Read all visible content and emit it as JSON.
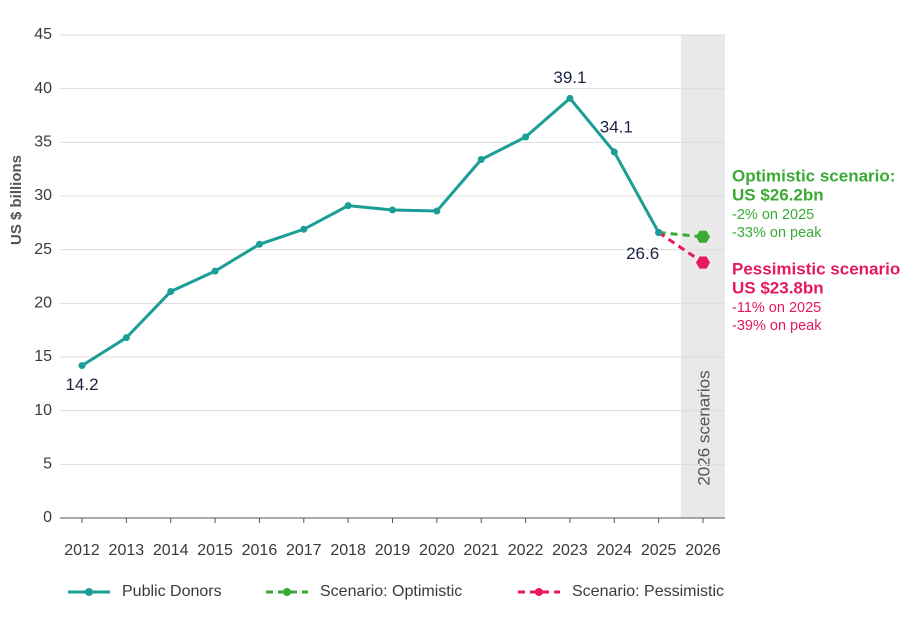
{
  "chart_data": {
    "type": "line",
    "y_label": "US $ billions",
    "categories": [
      "2012",
      "2013",
      "2014",
      "2015",
      "2016",
      "2017",
      "2018",
      "2019",
      "2020",
      "2021",
      "2022",
      "2023",
      "2024",
      "2025",
      "2026"
    ],
    "ylim": [
      0,
      45
    ],
    "yticks": [
      0,
      5,
      10,
      15,
      20,
      25,
      30,
      35,
      40,
      45
    ],
    "grid": true,
    "legend": "bottom",
    "shaded_region": {
      "category": "2026",
      "label": "2026 scenarios"
    },
    "series": [
      {
        "name": "Public Donors",
        "color": "#1a9e96",
        "dashed": false,
        "values": [
          14.2,
          16.8,
          21.1,
          23.0,
          25.5,
          26.9,
          29.1,
          28.7,
          28.6,
          33.4,
          35.5,
          39.1,
          34.1,
          26.6,
          null
        ],
        "value_labels": [
          "14.2",
          null,
          null,
          null,
          null,
          null,
          null,
          null,
          null,
          null,
          null,
          "39.1",
          "34.1",
          "26.6",
          null
        ]
      },
      {
        "name": "Scenario: Optimistic",
        "color": "#3aaa35",
        "dashed": true,
        "values": [
          null,
          null,
          null,
          null,
          null,
          null,
          null,
          null,
          null,
          null,
          null,
          null,
          null,
          26.6,
          26.2
        ]
      },
      {
        "name": "Scenario: Pessimistic",
        "color": "#e6195a",
        "dashed": true,
        "values": [
          null,
          null,
          null,
          null,
          null,
          null,
          null,
          null,
          null,
          null,
          null,
          null,
          null,
          26.6,
          23.8
        ]
      }
    ],
    "annotations": [
      {
        "color": "#3aaa35",
        "lines": [
          "Optimistic scenario:",
          "US $26.2bn",
          "-2% on 2025",
          "-33% on peak"
        ]
      },
      {
        "color": "#e6195a",
        "lines": [
          "Pessimistic scenario:",
          "US $23.8bn",
          "-11% on 2025",
          "-39% on peak"
        ]
      }
    ]
  }
}
